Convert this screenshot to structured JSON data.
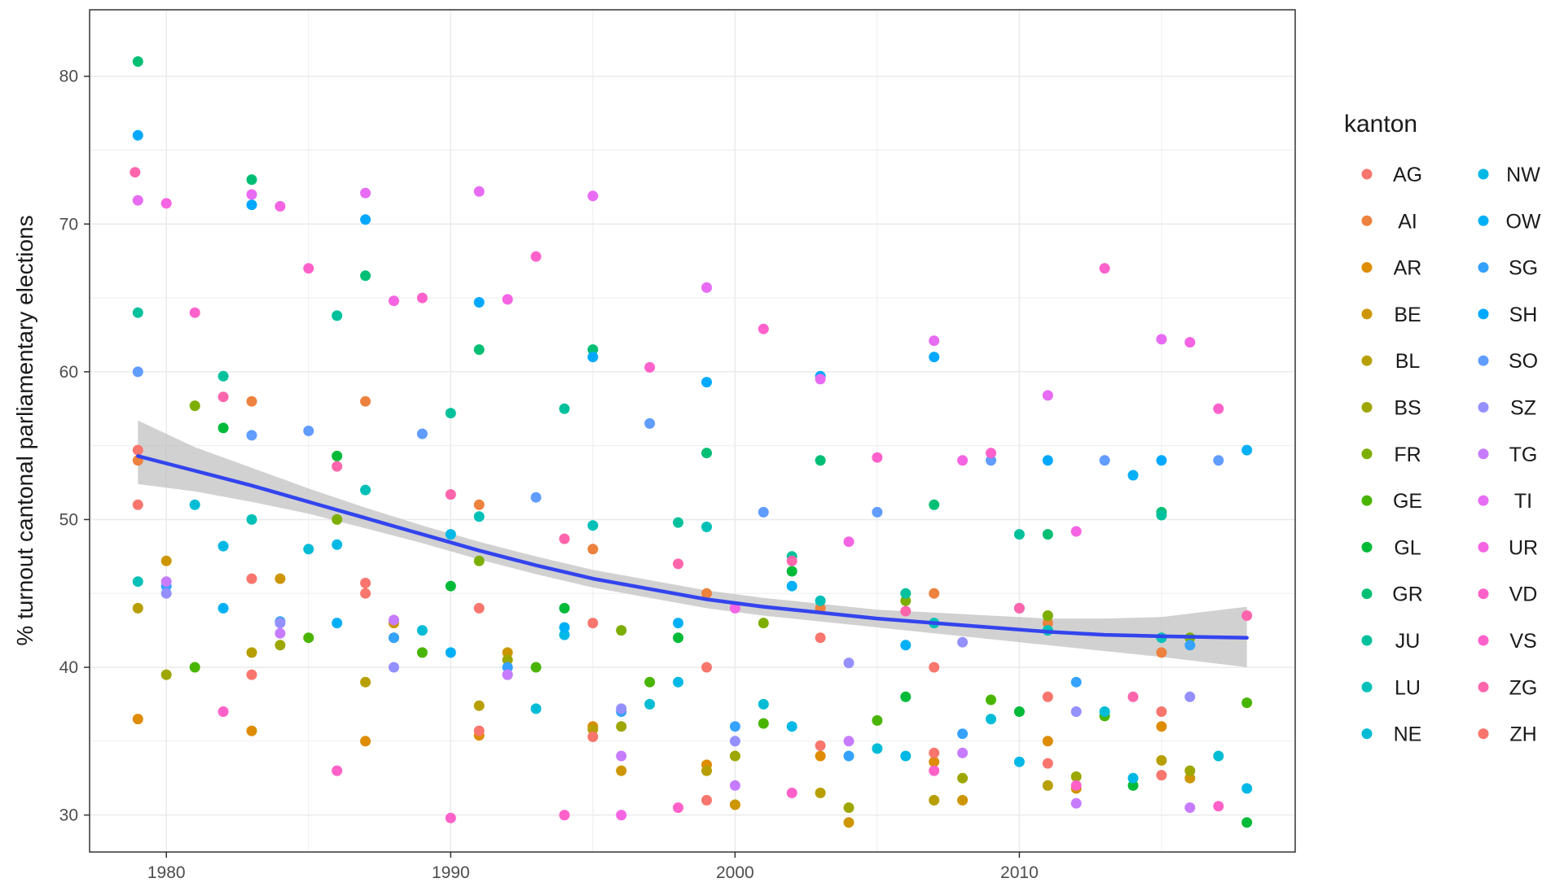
{
  "chart_data": {
    "type": "scatter",
    "title": "",
    "xlabel": "",
    "ylabel": "% turnout cantonal parliamentary elections",
    "xlim": [
      1977.3,
      2019.7
    ],
    "ylim": [
      27.5,
      84.5
    ],
    "x_ticks": [
      1980,
      1990,
      2000,
      2010
    ],
    "y_ticks": [
      30,
      40,
      50,
      60,
      70,
      80
    ],
    "grid": true,
    "legend": {
      "title": "kanton",
      "position": "right",
      "columns": 2
    },
    "categories": [
      "AG",
      "AI",
      "AR",
      "BE",
      "BL",
      "BS",
      "FR",
      "GE",
      "GL",
      "GR",
      "JU",
      "LU",
      "NE",
      "NW",
      "OW",
      "SG",
      "SH",
      "SO",
      "SZ",
      "TG",
      "TI",
      "UR",
      "VD",
      "VS",
      "ZG",
      "ZH"
    ],
    "colors": [
      "#F8766D",
      "#ED813E",
      "#DE8C00",
      "#CD9600",
      "#B79F00",
      "#9DA700",
      "#7CAE00",
      "#49B500",
      "#00BA38",
      "#00BF74",
      "#00C19C",
      "#00C0B8",
      "#00BCD4",
      "#00B8E5",
      "#00B0F6",
      "#35A2FF",
      "#00A9FF",
      "#619CFF",
      "#9590FF",
      "#C77CFF",
      "#E76BF3",
      "#F564E3",
      "#FF61C9",
      "#FF61CC",
      "#FF65AC",
      "#F8766D"
    ],
    "series": [
      {
        "name": "AG",
        "x": [
          1979,
          1983,
          1987,
          1991,
          1995,
          1999,
          2003,
          2007,
          2011,
          2015
        ],
        "y": [
          51,
          46,
          45,
          44,
          43,
          40,
          42,
          40,
          38,
          37
        ]
      },
      {
        "name": "AI",
        "x": [
          1979,
          1983,
          1987,
          1991,
          1995,
          1999,
          2003,
          2007,
          2011,
          2015
        ],
        "y": [
          54,
          58,
          58,
          51,
          48,
          45,
          44,
          45,
          43,
          41
        ]
      },
      {
        "name": "AR",
        "x": [
          1979,
          1983,
          1987,
          1991,
          1995,
          1999,
          2003,
          2007,
          2011,
          2015
        ],
        "y": [
          36.5,
          35.7,
          35,
          35.4,
          36,
          33.4,
          34,
          33.6,
          35,
          36
        ]
      },
      {
        "name": "BE",
        "x": [
          1980,
          1984,
          1988,
          1992,
          1996,
          2000,
          2004,
          2008,
          2012,
          2016
        ],
        "y": [
          47.2,
          46,
          43,
          41,
          33,
          30.7,
          29.5,
          31,
          31.8,
          32.5
        ]
      },
      {
        "name": "BL",
        "x": [
          1979,
          1983,
          1987,
          1991,
          1995,
          1999,
          2003,
          2007,
          2011,
          2015
        ],
        "y": [
          44,
          41,
          39,
          37.4,
          35.8,
          33,
          31.5,
          31,
          32,
          33.7
        ]
      },
      {
        "name": "BS",
        "x": [
          1980,
          1984,
          1988,
          1992,
          1996,
          2000,
          2004,
          2008,
          2012,
          2016
        ],
        "y": [
          39.5,
          41.5,
          42,
          40.5,
          36,
          34,
          30.5,
          32.5,
          32.6,
          33
        ]
      },
      {
        "name": "FR",
        "x": [
          1981,
          1986,
          1991,
          1996,
          2001,
          2006,
          2011,
          2016
        ],
        "y": [
          57.7,
          50,
          47.2,
          42.5,
          43,
          44.5,
          43.5,
          42
        ]
      },
      {
        "name": "GE",
        "x": [
          1981,
          1985,
          1989,
          1993,
          1997,
          2001,
          2005,
          2009,
          2013,
          2018
        ],
        "y": [
          40,
          42,
          41,
          40,
          39,
          36.2,
          36.4,
          37.8,
          36.7,
          37.6
        ]
      },
      {
        "name": "GL",
        "x": [
          1982,
          1986,
          1990,
          1994,
          1998,
          2002,
          2006,
          2010,
          2014,
          2018
        ],
        "y": [
          56.2,
          54.3,
          45.5,
          44,
          42,
          46.5,
          38,
          37,
          32,
          29.5
        ]
      },
      {
        "name": "GR",
        "x": [
          1979,
          1983,
          1987,
          1991,
          1995,
          1999,
          2003,
          2007,
          2011,
          2015
        ],
        "y": [
          81,
          73,
          66.5,
          61.5,
          61.5,
          54.5,
          54,
          51,
          49,
          50.5
        ]
      },
      {
        "name": "JU",
        "x": [
          1979,
          1982,
          1986,
          1990,
          1994,
          1998,
          2002,
          2006,
          2010,
          2015
        ],
        "y": [
          64,
          59.7,
          63.8,
          57.2,
          57.5,
          49.8,
          47.5,
          45,
          49,
          50.3
        ]
      },
      {
        "name": "LU",
        "x": [
          1979,
          1983,
          1987,
          1991,
          1995,
          1999,
          2003,
          2007,
          2011,
          2015
        ],
        "y": [
          45.8,
          50,
          52,
          50.2,
          49.6,
          49.5,
          44.5,
          43,
          42.5,
          42
        ]
      },
      {
        "name": "NE",
        "x": [
          1981,
          1985,
          1989,
          1993,
          1997,
          2001,
          2005,
          2009,
          2013,
          2017
        ],
        "y": [
          51,
          48,
          42.5,
          37.2,
          37.5,
          37.5,
          34.5,
          36.5,
          37,
          34
        ]
      },
      {
        "name": "NW",
        "x": [
          1982,
          1986,
          1990,
          1994,
          1998,
          2002,
          2006,
          2010,
          2014,
          2018
        ],
        "y": [
          48.2,
          48.3,
          49,
          42.2,
          39,
          36,
          34,
          33.6,
          32.5,
          31.8
        ]
      },
      {
        "name": "OW",
        "x": [
          1982,
          1986,
          1990,
          1994,
          1998,
          2002,
          2006,
          2010,
          2014,
          2018
        ],
        "y": [
          44,
          43,
          41,
          42.7,
          43,
          45.5,
          41.5,
          44,
          53,
          54.7
        ]
      },
      {
        "name": "SG",
        "x": [
          1980,
          1984,
          1988,
          1992,
          1996,
          2000,
          2004,
          2008,
          2012,
          2016
        ],
        "y": [
          45.5,
          43.1,
          42,
          40,
          37,
          36,
          34,
          35.5,
          39,
          41.5
        ]
      },
      {
        "name": "SH",
        "x": [
          1979,
          1983,
          1987,
          1991,
          1995,
          1999,
          2003,
          2007,
          2011,
          2015
        ],
        "y": [
          76,
          71.3,
          70.3,
          64.7,
          61,
          59.3,
          59.7,
          61,
          54,
          54
        ]
      },
      {
        "name": "SO",
        "x": [
          1979,
          1983,
          1985,
          1989,
          1993,
          1997,
          2001,
          2005,
          2009,
          2013,
          2017
        ],
        "y": [
          60,
          55.7,
          56,
          55.8,
          51.5,
          56.5,
          50.5,
          50.5,
          54,
          54,
          54
        ]
      },
      {
        "name": "SZ",
        "x": [
          1980,
          1984,
          1988,
          1992,
          1996,
          2000,
          2004,
          2008,
          2012,
          2016
        ],
        "y": [
          45,
          43,
          40,
          39.5,
          37.2,
          35,
          40.3,
          41.7,
          37,
          38
        ]
      },
      {
        "name": "TG",
        "x": [
          1980,
          1984,
          1988,
          1992,
          1996,
          2000,
          2004,
          2008,
          2012,
          2016
        ],
        "y": [
          45.8,
          42.3,
          43.2,
          39.5,
          34,
          32,
          35,
          34.2,
          30.8,
          30.5
        ]
      },
      {
        "name": "TI",
        "x": [
          1979,
          1983,
          1987,
          1991,
          1995,
          1999,
          2003,
          2007,
          2011,
          2015
        ],
        "y": [
          71.6,
          72,
          72.1,
          72.2,
          71.9,
          65.7,
          59.5,
          62.1,
          58.4,
          62.2
        ]
      },
      {
        "name": "UR",
        "x": [
          1980,
          1984,
          1988,
          1992,
          1996,
          2000,
          2004,
          2008,
          2012,
          2016
        ],
        "y": [
          71.4,
          71.2,
          64.8,
          64.9,
          30,
          44,
          48.5,
          54,
          49.2,
          62
        ]
      },
      {
        "name": "VD",
        "x": [
          1982,
          1986,
          1990,
          1994,
          1998,
          2002,
          2007,
          2012,
          2017
        ],
        "y": [
          37,
          33,
          29.8,
          30,
          30.5,
          31.5,
          33,
          32,
          30.6
        ]
      },
      {
        "name": "VS",
        "x": [
          1981,
          1985,
          1989,
          1993,
          1997,
          2001,
          2005,
          2009,
          2013,
          2017
        ],
        "y": [
          64,
          67,
          65,
          67.8,
          60.3,
          62.9,
          54.2,
          54.5,
          67,
          57.5
        ]
      },
      {
        "name": "ZG",
        "x": [
          1978.9,
          1982,
          1986,
          1990,
          1994,
          1998,
          2002,
          2006,
          2010,
          2014,
          2018
        ],
        "y": [
          73.5,
          58.3,
          53.6,
          51.7,
          48.7,
          47,
          47.2,
          43.8,
          44,
          38,
          43.5
        ]
      },
      {
        "name": "ZH",
        "x": [
          1979,
          1983,
          1987,
          1991,
          1995,
          1999,
          2003,
          2007,
          2011,
          2015
        ],
        "y": [
          54.7,
          39.5,
          45.7,
          35.7,
          35.3,
          31,
          34.7,
          34.2,
          33.5,
          32.7
        ]
      }
    ],
    "smooth": {
      "x": [
        1979,
        1981,
        1983,
        1985,
        1987,
        1989,
        1991,
        1993,
        1995,
        1997,
        1999,
        2001,
        2003,
        2005,
        2007,
        2009,
        2011,
        2013,
        2015,
        2018
      ],
      "y": [
        54.3,
        53.3,
        52.3,
        51.2,
        50.1,
        49,
        47.9,
        46.9,
        46,
        45.3,
        44.6,
        44.1,
        43.7,
        43.3,
        43,
        42.7,
        42.4,
        42.2,
        42.1,
        42
      ],
      "lower": [
        52.4,
        51.9,
        51.2,
        50.4,
        49.4,
        48.4,
        47.3,
        46.3,
        45.4,
        44.7,
        44,
        43.5,
        43.1,
        42.7,
        42.3,
        41.9,
        41.5,
        41.1,
        40.7,
        40
      ],
      "upper": [
        56.7,
        54.9,
        53.5,
        52.1,
        50.8,
        49.6,
        48.5,
        47.5,
        46.6,
        45.9,
        45.2,
        44.7,
        44.3,
        43.9,
        43.7,
        43.5,
        43.3,
        43.3,
        43.4,
        44.1
      ],
      "color": "#3344EE",
      "band_color": "#BEBEBE"
    }
  }
}
